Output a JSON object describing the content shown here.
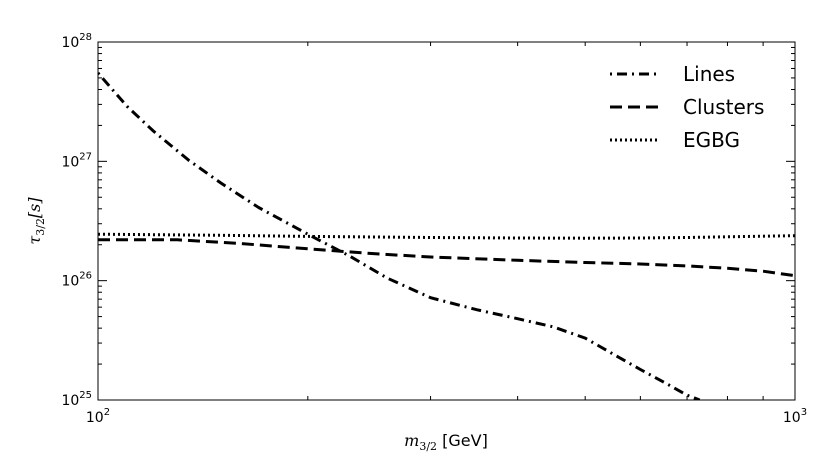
{
  "chart_data": {
    "type": "line",
    "title": "",
    "xscale": "log",
    "yscale": "log",
    "xlim": [
      100,
      1000
    ],
    "ylim": [
      1e+25,
      1e+28
    ],
    "xlabel": {
      "var": "m",
      "sub": "3/2",
      "unit": " [GeV]"
    },
    "ylabel": {
      "var": "τ",
      "sub": "3/2",
      "rest": "[s]"
    },
    "x_ticks": [
      {
        "value": 100,
        "base": "10",
        "exp": "2"
      },
      {
        "value": 1000,
        "base": "10",
        "exp": "3"
      }
    ],
    "y_ticks": [
      {
        "value": 1e+25,
        "base": "10",
        "exp": "25"
      },
      {
        "value": 1e+26,
        "base": "10",
        "exp": "26"
      },
      {
        "value": 1e+27,
        "base": "10",
        "exp": "27"
      },
      {
        "value": 1e+28,
        "base": "10",
        "exp": "28"
      }
    ],
    "legend_position": "top-right",
    "grid": false,
    "series": [
      {
        "name": "Lines",
        "style": "dashdot",
        "x": [
          100,
          110,
          120,
          135,
          150,
          170,
          200,
          230,
          260,
          300,
          350,
          400,
          450,
          500,
          550,
          600,
          650,
          700,
          730
        ],
        "y": [
          5.5e+27,
          2.9e+27,
          1.8e+27,
          1.02e+27,
          6.6e+26,
          4.1e+26,
          2.45e+26,
          1.6e+26,
          1.05e+26,
          7.2e+25,
          5.7e+25,
          4.8e+25,
          4.1e+25,
          3.3e+25,
          2.4e+25,
          1.8e+25,
          1.4e+25,
          1.1e+25,
          1e+25
        ]
      },
      {
        "name": "Clusters",
        "style": "dashed",
        "x": [
          100,
          130,
          160,
          200,
          250,
          300,
          400,
          500,
          600,
          700,
          800,
          900,
          1000
        ],
        "y": [
          2.2e+26,
          2.2e+26,
          2.05e+26,
          1.85e+26,
          1.68e+26,
          1.58e+26,
          1.48e+26,
          1.42e+26,
          1.38e+26,
          1.33e+26,
          1.27e+26,
          1.2e+26,
          1.1e+26
        ]
      },
      {
        "name": "EGBG",
        "style": "dotted",
        "x": [
          100,
          150,
          200,
          300,
          400,
          500,
          600,
          700,
          800,
          900,
          1000
        ],
        "y": [
          2.45e+26,
          2.4e+26,
          2.35e+26,
          2.3e+26,
          2.28e+26,
          2.27e+26,
          2.28e+26,
          2.3e+26,
          2.33e+26,
          2.36e+26,
          2.38e+26
        ]
      }
    ]
  }
}
